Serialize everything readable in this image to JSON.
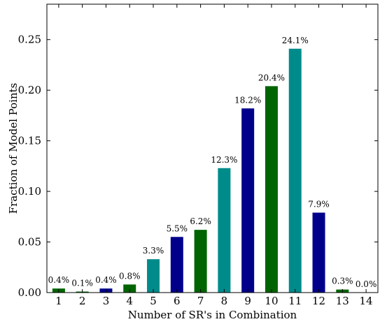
{
  "chart_data": {
    "type": "bar",
    "title": "",
    "xlabel": "Number of SR's in Combination",
    "ylabel": "Fraction of Model Points",
    "categories": [
      "1",
      "2",
      "3",
      "4",
      "5",
      "6",
      "7",
      "8",
      "9",
      "10",
      "11",
      "12",
      "13",
      "14"
    ],
    "values": [
      0.004,
      0.001,
      0.004,
      0.008,
      0.033,
      0.055,
      0.062,
      0.123,
      0.182,
      0.204,
      0.241,
      0.079,
      0.003,
      0.0
    ],
    "data_labels": [
      "0.4%",
      "0.1%",
      "0.4%",
      "0.8%",
      "3.3%",
      "5.5%",
      "6.2%",
      "12.3%",
      "18.2%",
      "20.4%",
      "24.1%",
      "7.9%",
      "0.3%",
      "0.0%"
    ],
    "bar_colors": [
      "#006400",
      "#006400",
      "#00008B",
      "#006400",
      "#008B8B",
      "#00008B",
      "#006400",
      "#008B8B",
      "#00008B",
      "#006400",
      "#008B8B",
      "#00008B",
      "#006400",
      "#006400"
    ],
    "ylim": [
      0,
      0.285
    ],
    "xlim": [
      0.5,
      14.5
    ],
    "yticks": [
      0.0,
      0.05,
      0.1,
      0.15,
      0.2,
      0.25
    ],
    "ytick_labels": [
      "0.00",
      "0.05",
      "0.10",
      "0.15",
      "0.20",
      "0.25"
    ],
    "grid": false,
    "legend": "none"
  }
}
